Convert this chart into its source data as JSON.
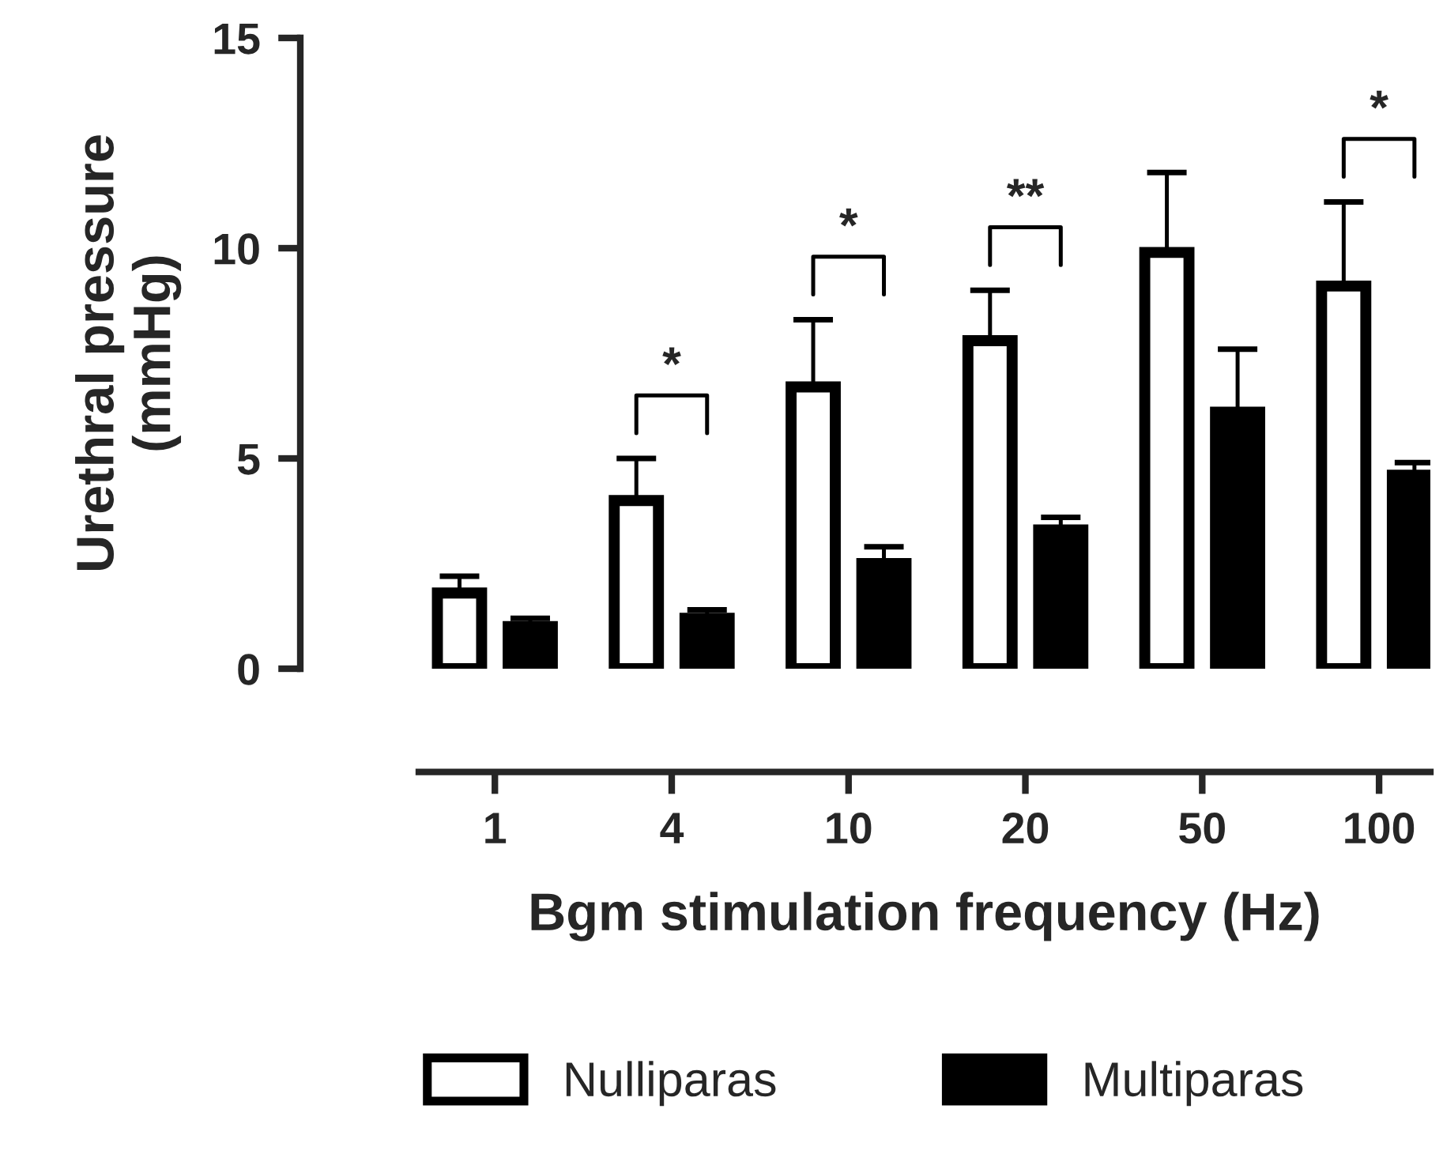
{
  "chart_data": {
    "type": "bar",
    "xlabel": "Bgm stimulation frequency (Hz)",
    "ylabel": "Urethral pressure\n(mmHg)",
    "categories": [
      "1",
      "4",
      "10",
      "20",
      "50",
      "100"
    ],
    "series": [
      {
        "name": "Nulliparas",
        "color": "#ffffff",
        "values": [
          1.8,
          4.0,
          6.7,
          7.8,
          9.9,
          9.1
        ],
        "errors": [
          [
            1.8,
            2.2
          ],
          [
            4.0,
            5.0
          ],
          [
            6.7,
            8.3
          ],
          [
            7.8,
            9.0
          ],
          [
            9.9,
            11.8
          ],
          [
            9.1,
            11.1
          ]
        ]
      },
      {
        "name": "Multiparas",
        "color": "#000000",
        "values": [
          1.0,
          1.2,
          2.5,
          3.3,
          6.1,
          4.6
        ],
        "errors": [
          [
            1.0,
            1.2
          ],
          [
            1.2,
            1.4
          ],
          [
            2.5,
            2.9
          ],
          [
            3.3,
            3.6
          ],
          [
            6.1,
            7.6
          ],
          [
            4.6,
            4.9
          ]
        ]
      }
    ],
    "ylim": [
      0,
      15
    ],
    "yticks": [
      0,
      5,
      10,
      15
    ],
    "grid": false,
    "legend": "bottom",
    "annotations": [
      "*",
      "*",
      "**",
      "*"
    ]
  }
}
